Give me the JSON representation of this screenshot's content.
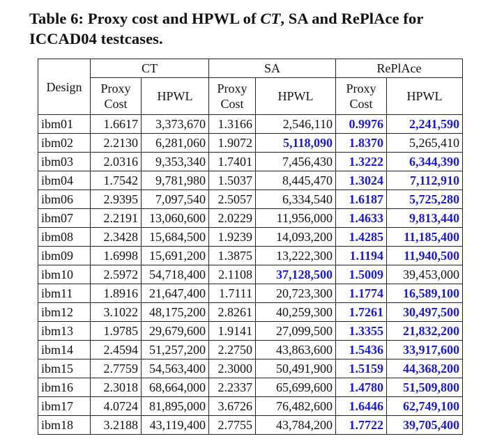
{
  "caption": {
    "prefix": "Table 6: Proxy cost and HPWL of ",
    "italic": "CT",
    "suffix": ", SA and RePlAce for ICCAD04 testcases."
  },
  "table": {
    "design_header": "Design",
    "groups": [
      "CT",
      "SA",
      "RePlAce"
    ],
    "subheaders": {
      "proxy_line1": "Proxy",
      "proxy_line2": "Cost",
      "hpwl": "HPWL"
    },
    "rows": [
      {
        "design": "ibm01",
        "ct_proxy": "1.6617",
        "ct_hpwl": "3,373,670",
        "sa_proxy": "1.3166",
        "sa_hpwl": "2,546,110",
        "rp_proxy": "0.9976",
        "rp_hpwl": "2,241,590",
        "best_proxy": "rp",
        "best_hpwl": "rp"
      },
      {
        "design": "ibm02",
        "ct_proxy": "2.2130",
        "ct_hpwl": "6,281,060",
        "sa_proxy": "1.9072",
        "sa_hpwl": "5,118,090",
        "rp_proxy": "1.8370",
        "rp_hpwl": "5,265,410",
        "best_proxy": "rp",
        "best_hpwl": "sa"
      },
      {
        "design": "ibm03",
        "ct_proxy": "2.0316",
        "ct_hpwl": "9,353,340",
        "sa_proxy": "1.7401",
        "sa_hpwl": "7,456,430",
        "rp_proxy": "1.3222",
        "rp_hpwl": "6,344,390",
        "best_proxy": "rp",
        "best_hpwl": "rp"
      },
      {
        "design": "ibm04",
        "ct_proxy": "1.7542",
        "ct_hpwl": "9,781,980",
        "sa_proxy": "1.5037",
        "sa_hpwl": "8,445,470",
        "rp_proxy": "1.3024",
        "rp_hpwl": "7,112,910",
        "best_proxy": "rp",
        "best_hpwl": "rp"
      },
      {
        "design": "ibm06",
        "ct_proxy": "2.9395",
        "ct_hpwl": "7,097,540",
        "sa_proxy": "2.5057",
        "sa_hpwl": "6,334,540",
        "rp_proxy": "1.6187",
        "rp_hpwl": "5,725,280",
        "best_proxy": "rp",
        "best_hpwl": "rp"
      },
      {
        "design": "ibm07",
        "ct_proxy": "2.2191",
        "ct_hpwl": "13,060,600",
        "sa_proxy": "2.0229",
        "sa_hpwl": "11,956,000",
        "rp_proxy": "1.4633",
        "rp_hpwl": "9,813,440",
        "best_proxy": "rp",
        "best_hpwl": "rp"
      },
      {
        "design": "ibm08",
        "ct_proxy": "2.3428",
        "ct_hpwl": "15,684,500",
        "sa_proxy": "1.9239",
        "sa_hpwl": "14,093,200",
        "rp_proxy": "1.4285",
        "rp_hpwl": "11,185,400",
        "best_proxy": "rp",
        "best_hpwl": "rp"
      },
      {
        "design": "ibm09",
        "ct_proxy": "1.6998",
        "ct_hpwl": "15,691,200",
        "sa_proxy": "1.3875",
        "sa_hpwl": "13,222,300",
        "rp_proxy": "1.1194",
        "rp_hpwl": "11,940,500",
        "best_proxy": "rp",
        "best_hpwl": "rp"
      },
      {
        "design": "ibm10",
        "ct_proxy": "2.5972",
        "ct_hpwl": "54,718,400",
        "sa_proxy": "2.1108",
        "sa_hpwl": "37,128,500",
        "rp_proxy": "1.5009",
        "rp_hpwl": "39,453,000",
        "best_proxy": "rp",
        "best_hpwl": "sa"
      },
      {
        "design": "ibm11",
        "ct_proxy": "1.8916",
        "ct_hpwl": "21,647,400",
        "sa_proxy": "1.7111",
        "sa_hpwl": "20,723,300",
        "rp_proxy": "1.1774",
        "rp_hpwl": "16,589,100",
        "best_proxy": "rp",
        "best_hpwl": "rp"
      },
      {
        "design": "ibm12",
        "ct_proxy": "3.1022",
        "ct_hpwl": "48,175,200",
        "sa_proxy": "2.8261",
        "sa_hpwl": "40,259,300",
        "rp_proxy": "1.7261",
        "rp_hpwl": "30,497,500",
        "best_proxy": "rp",
        "best_hpwl": "rp"
      },
      {
        "design": "ibm13",
        "ct_proxy": "1.9785",
        "ct_hpwl": "29,679,600",
        "sa_proxy": "1.9141",
        "sa_hpwl": "27,099,500",
        "rp_proxy": "1.3355",
        "rp_hpwl": "21,832,200",
        "best_proxy": "rp",
        "best_hpwl": "rp"
      },
      {
        "design": "ibm14",
        "ct_proxy": "2.4594",
        "ct_hpwl": "51,257,200",
        "sa_proxy": "2.2750",
        "sa_hpwl": "43,863,600",
        "rp_proxy": "1.5436",
        "rp_hpwl": "33,917,600",
        "best_proxy": "rp",
        "best_hpwl": "rp"
      },
      {
        "design": "ibm15",
        "ct_proxy": "2.7759",
        "ct_hpwl": "54,563,400",
        "sa_proxy": "2.3000",
        "sa_hpwl": "50,491,900",
        "rp_proxy": "1.5159",
        "rp_hpwl": "44,368,200",
        "best_proxy": "rp",
        "best_hpwl": "rp"
      },
      {
        "design": "ibm16",
        "ct_proxy": "2.3018",
        "ct_hpwl": "68,664,000",
        "sa_proxy": "2.2337",
        "sa_hpwl": "65,699,600",
        "rp_proxy": "1.4780",
        "rp_hpwl": "51,509,800",
        "best_proxy": "rp",
        "best_hpwl": "rp"
      },
      {
        "design": "ibm17",
        "ct_proxy": "4.0724",
        "ct_hpwl": "81,895,000",
        "sa_proxy": "3.6726",
        "sa_hpwl": "76,482,600",
        "rp_proxy": "1.6446",
        "rp_hpwl": "62,749,100",
        "best_proxy": "rp",
        "best_hpwl": "rp"
      },
      {
        "design": "ibm18",
        "ct_proxy": "3.2188",
        "ct_hpwl": "43,119,400",
        "sa_proxy": "2.7755",
        "sa_hpwl": "43,784,200",
        "rp_proxy": "1.7722",
        "rp_hpwl": "39,705,400",
        "best_proxy": "rp",
        "best_hpwl": "rp"
      }
    ]
  },
  "colors": {
    "best_value": "#1a1ad6",
    "text": "#111111",
    "border": "#222222"
  }
}
